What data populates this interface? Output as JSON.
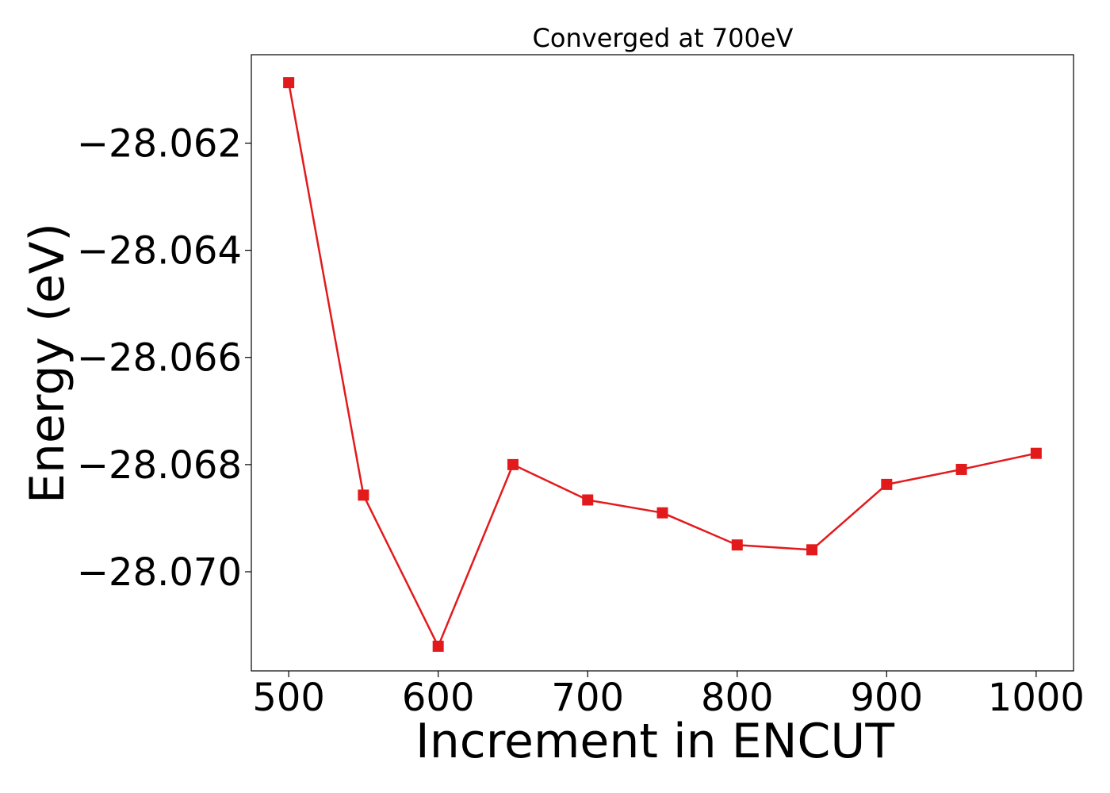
{
  "chart_data": {
    "type": "line",
    "title": "Converged at 700eV",
    "xlabel": "Increment in ENCUT",
    "ylabel": "Energy (eV)",
    "xlim": [
      475,
      1025
    ],
    "ylim": [
      -28.07185,
      -28.06035
    ],
    "xticks": [
      500,
      600,
      700,
      800,
      900,
      1000
    ],
    "xtick_labels": [
      "500",
      "600",
      "700",
      "800",
      "900",
      "1000"
    ],
    "yticks": [
      -28.062,
      -28.064,
      -28.066,
      -28.068,
      -28.07
    ],
    "ytick_labels": [
      "−28.062",
      "−28.064",
      "−28.066",
      "−28.068",
      "−28.070"
    ],
    "grid": false,
    "series": [
      {
        "color": "#e31a1c",
        "marker": "square",
        "x": [
          500,
          550,
          600,
          650,
          700,
          750,
          800,
          850,
          900,
          950,
          1000
        ],
        "y": [
          -28.06087,
          -28.06857,
          -28.07139,
          -28.068,
          -28.06866,
          -28.0689,
          -28.0695,
          -28.06959,
          -28.06837,
          -28.06809,
          -28.06779
        ]
      }
    ]
  }
}
